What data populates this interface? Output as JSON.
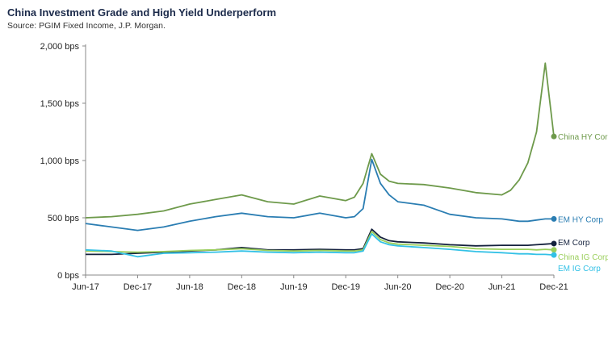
{
  "header": {
    "title": "China Investment Grade and High Yield Underperform",
    "source": "Source: PGIM Fixed Income, J.P. Morgan."
  },
  "chart_data": {
    "type": "line",
    "title": "China Investment Grade and High Yield Underperform",
    "xlabel": "",
    "ylabel": "",
    "ylim": [
      0,
      2000
    ],
    "y_ticks": [
      0,
      500,
      1000,
      1500,
      2000
    ],
    "y_tick_labels": [
      "0 bps",
      "500 bps",
      "1,000 bps",
      "1,500 bps",
      "2,000 bps"
    ],
    "x_tick_labels": [
      "Jun-17",
      "Dec-17",
      "Jun-18",
      "Dec-18",
      "Jun-19",
      "Dec-19",
      "Jun-20",
      "Dec-20",
      "Jun-21",
      "Dec-21"
    ],
    "grid": false,
    "legend": "end-of-line labels",
    "x": [
      "Jun-17",
      "Sep-17",
      "Dec-17",
      "Mar-18",
      "Jun-18",
      "Sep-18",
      "Dec-18",
      "Mar-19",
      "Jun-19",
      "Sep-19",
      "Dec-19",
      "Jan-20",
      "Feb-20",
      "Mar-20",
      "Apr-20",
      "May-20",
      "Jun-20",
      "Sep-20",
      "Dec-20",
      "Mar-21",
      "Jun-21",
      "Jul-21",
      "Aug-21",
      "Sep-21",
      "Oct-21",
      "Nov-21",
      "Dec-21"
    ],
    "series": [
      {
        "name": "China HY Corp",
        "color": "#6e9a4b",
        "values": [
          500,
          510,
          530,
          560,
          620,
          660,
          700,
          640,
          620,
          690,
          650,
          680,
          800,
          1060,
          880,
          820,
          800,
          790,
          760,
          720,
          700,
          740,
          830,
          980,
          1250,
          1850,
          1210
        ]
      },
      {
        "name": "EM HY Corp",
        "color": "#2a7db2",
        "values": [
          450,
          420,
          390,
          420,
          470,
          510,
          540,
          510,
          500,
          540,
          500,
          510,
          580,
          1010,
          800,
          700,
          640,
          610,
          530,
          500,
          490,
          480,
          470,
          470,
          480,
          490,
          490
        ]
      },
      {
        "name": "EM Corp",
        "color": "#14213d",
        "values": [
          180,
          180,
          190,
          200,
          210,
          220,
          240,
          220,
          220,
          225,
          220,
          220,
          230,
          400,
          330,
          300,
          290,
          280,
          265,
          255,
          260,
          260,
          260,
          260,
          265,
          270,
          275
        ]
      },
      {
        "name": "China IG Corp",
        "color": "#9bcf5c",
        "values": [
          210,
          205,
          200,
          205,
          215,
          220,
          230,
          215,
          210,
          215,
          210,
          210,
          220,
          380,
          310,
          280,
          270,
          260,
          250,
          230,
          225,
          225,
          225,
          225,
          220,
          225,
          220
        ]
      },
      {
        "name": "EM IG Corp",
        "color": "#33c1e6",
        "values": [
          220,
          210,
          160,
          190,
          195,
          200,
          210,
          200,
          195,
          200,
          195,
          195,
          210,
          360,
          290,
          265,
          255,
          240,
          225,
          205,
          195,
          190,
          185,
          185,
          180,
          180,
          175
        ]
      }
    ]
  }
}
